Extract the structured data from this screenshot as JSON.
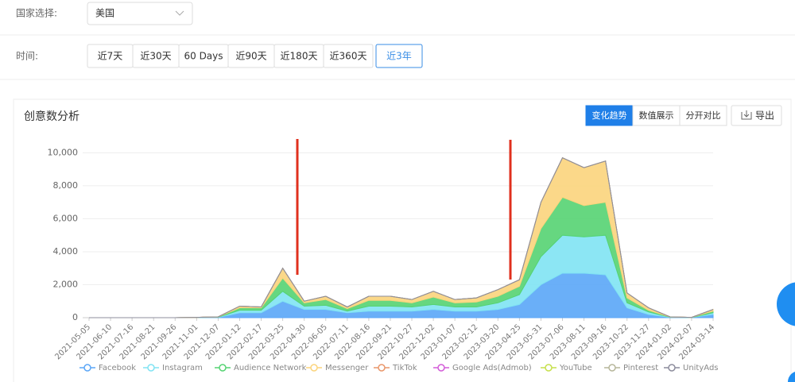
{
  "filters": {
    "country_label": "国家选择:",
    "country_value": "美国",
    "time_label": "时间:",
    "time_options": [
      "近7天",
      "近30天",
      "60 Days",
      "近90天",
      "近180天",
      "近360天",
      "近3年"
    ]
  },
  "panel": {
    "title": "创意数分析",
    "view_options": [
      "变化趋势",
      "数值展示",
      "分开对比"
    ],
    "export": "导出"
  },
  "chart_data": {
    "type": "stacked_area",
    "x": [
      "2021-05-05",
      "2021-06-10",
      "2021-07-16",
      "2021-08-21",
      "2021-09-26",
      "2021-11-01",
      "2021-12-07",
      "2022-01-12",
      "2022-02-17",
      "2022-03-25",
      "2022-04-30",
      "2022-06-05",
      "2022-07-11",
      "2022-08-16",
      "2022-09-21",
      "2022-10-27",
      "2022-12-02",
      "2023-01-07",
      "2023-02-12",
      "2023-03-20",
      "2023-04-25",
      "2023-05-31",
      "2023-07-06",
      "2023-08-11",
      "2023-09-16",
      "2023-10-22",
      "2023-11-27",
      "2024-01-02",
      "2024-02-07",
      "2024-03-14"
    ],
    "series": [
      {
        "name": "Facebook",
        "color": "#5aa6f7",
        "values": [
          0,
          0,
          0,
          0,
          0,
          10,
          20,
          300,
          300,
          1000,
          500,
          500,
          300,
          400,
          400,
          400,
          500,
          400,
          400,
          500,
          800,
          2000,
          2700,
          2700,
          2600,
          600,
          200,
          20,
          10,
          200
        ]
      },
      {
        "name": "Instagram",
        "color": "#80e3f3",
        "values": [
          0,
          0,
          0,
          0,
          0,
          5,
          10,
          150,
          150,
          600,
          200,
          250,
          100,
          300,
          300,
          250,
          300,
          250,
          250,
          400,
          600,
          1700,
          2300,
          2200,
          2400,
          300,
          150,
          10,
          5,
          100
        ]
      },
      {
        "name": "Audience Network",
        "color": "#55d372",
        "values": [
          0,
          0,
          0,
          0,
          0,
          5,
          10,
          150,
          150,
          800,
          200,
          350,
          150,
          350,
          350,
          250,
          450,
          250,
          300,
          400,
          500,
          1700,
          2300,
          1900,
          2000,
          300,
          100,
          10,
          3,
          100
        ]
      },
      {
        "name": "Messenger",
        "color": "#fbd47c",
        "values": [
          0,
          0,
          0,
          0,
          0,
          0,
          10,
          100,
          50,
          600,
          100,
          200,
          100,
          250,
          250,
          200,
          350,
          200,
          250,
          400,
          400,
          1600,
          2400,
          2300,
          2500,
          300,
          150,
          10,
          2,
          100
        ]
      },
      {
        "name": "TikTok",
        "color": "#e9966a",
        "values": [
          0,
          0,
          0,
          0,
          0,
          0,
          0,
          0,
          0,
          0,
          0,
          0,
          0,
          0,
          0,
          0,
          0,
          0,
          0,
          0,
          0,
          0,
          0,
          0,
          0,
          0,
          0,
          0,
          0,
          0
        ]
      },
      {
        "name": "Google Ads(Admob)",
        "color": "#d35bd8",
        "values": [
          0,
          0,
          0,
          0,
          0,
          0,
          0,
          0,
          0,
          0,
          0,
          0,
          0,
          0,
          0,
          0,
          0,
          0,
          0,
          0,
          0,
          0,
          0,
          0,
          0,
          0,
          0,
          0,
          0,
          0
        ]
      },
      {
        "name": "YouTube",
        "color": "#c6e04a",
        "values": [
          0,
          0,
          0,
          0,
          0,
          0,
          0,
          0,
          0,
          0,
          0,
          0,
          0,
          0,
          0,
          0,
          0,
          0,
          0,
          0,
          0,
          0,
          0,
          0,
          0,
          0,
          0,
          0,
          0,
          0
        ]
      },
      {
        "name": "Pinterest",
        "color": "#b6b69a",
        "values": [
          0,
          0,
          0,
          0,
          0,
          0,
          0,
          0,
          0,
          0,
          0,
          0,
          0,
          0,
          0,
          0,
          0,
          0,
          0,
          0,
          0,
          0,
          0,
          0,
          0,
          0,
          0,
          0,
          0,
          0
        ]
      },
      {
        "name": "UnityAds",
        "color": "#8c8c9c",
        "values": [
          0,
          0,
          0,
          0,
          0,
          0,
          0,
          0,
          0,
          0,
          0,
          0,
          0,
          0,
          0,
          0,
          0,
          0,
          0,
          0,
          0,
          0,
          0,
          0,
          0,
          0,
          0,
          0,
          0,
          0
        ]
      }
    ],
    "ylim": [
      0,
      10500
    ],
    "yticks": [
      0,
      {
        "value": 2000,
        "label": "2,000"
      },
      {
        "value": 4000,
        "label": "4,000"
      },
      {
        "value": 6000,
        "label": "6,000"
      },
      {
        "value": 8000,
        "label": "8,000"
      },
      {
        "value": 10000,
        "label": "10,000"
      }
    ],
    "grid": true
  }
}
